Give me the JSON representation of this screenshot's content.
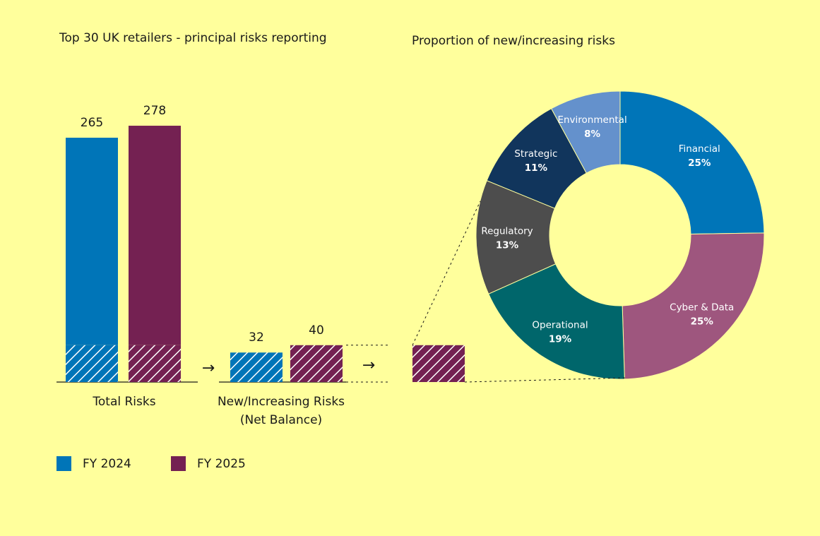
{
  "chart_data": [
    {
      "type": "bar",
      "title": "Top 30 UK retailers - principal risks reporting",
      "categories": [
        "Total Risks",
        "New/Increasing Risks\n(Net Balance)"
      ],
      "series": [
        {
          "name": "FY 2024",
          "color": "#0075b8",
          "values": [
            265,
            32
          ]
        },
        {
          "name": "FY 2025",
          "color": "#742152",
          "values": [
            278,
            40
          ]
        }
      ],
      "data_labels": [
        "265",
        "278",
        "32",
        "40"
      ],
      "legend_placement": "bottom-left"
    },
    {
      "type": "pie",
      "variant": "donut",
      "title": "Proportion of new/increasing risks",
      "slices": [
        {
          "label": "Financial",
          "value": 25,
          "text": "25%",
          "color": "#0075b8"
        },
        {
          "label": "Cyber & Data",
          "value": 25,
          "text": "25%",
          "color": "#9e567e"
        },
        {
          "label": "Operational",
          "value": 19,
          "text": "19%",
          "color": "#00666b"
        },
        {
          "label": "Regulatory",
          "value": 13,
          "text": "13%",
          "color": "#4d4d4d"
        },
        {
          "label": "Strategic",
          "value": 11,
          "text": "11%",
          "color": "#11355c"
        },
        {
          "label": "Environmental",
          "value": 8,
          "text": "8%",
          "color": "#6491cc"
        }
      ]
    }
  ],
  "arrow_glyph": "→"
}
